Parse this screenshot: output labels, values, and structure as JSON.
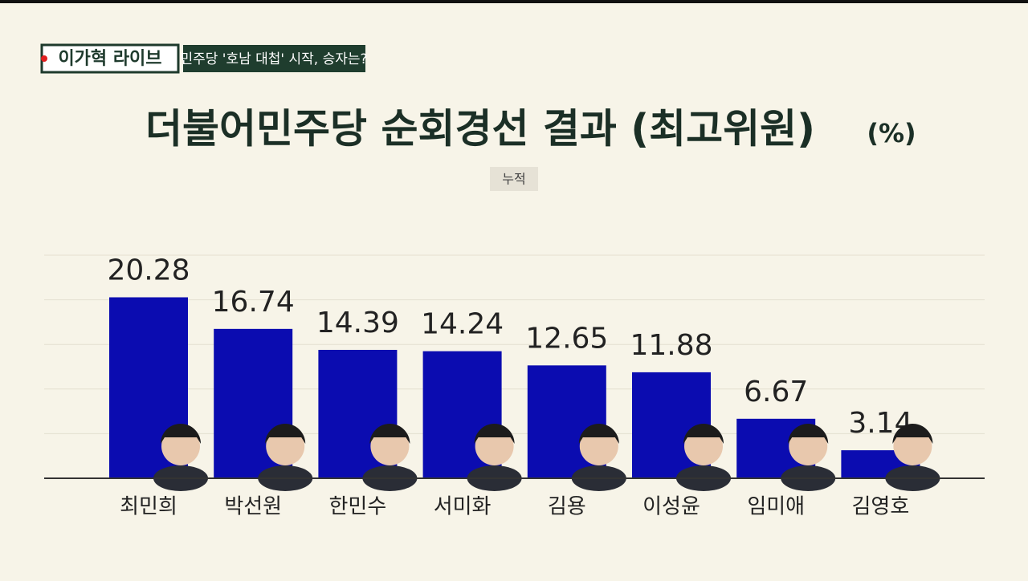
{
  "header": {
    "show": "이가혁 라이브",
    "headline": "민주당 '호남 대첩' 시작, 승자는?"
  },
  "chart_data": {
    "type": "bar",
    "title": "더불어민주당 순회경선 결과 (최고위원)",
    "unit": "(%)",
    "subtitle": "누적",
    "categories": [
      "최민희",
      "박선원",
      "한민수",
      "서미화",
      "김용",
      "이성윤",
      "임미애",
      "김영호"
    ],
    "values": [
      20.28,
      16.74,
      14.39,
      14.24,
      12.65,
      11.88,
      6.67,
      3.14
    ],
    "color": "#0b0cb0",
    "ylim": [
      0,
      25
    ],
    "yticks": [
      0,
      5,
      10,
      15,
      20,
      25
    ],
    "grid": true
  }
}
